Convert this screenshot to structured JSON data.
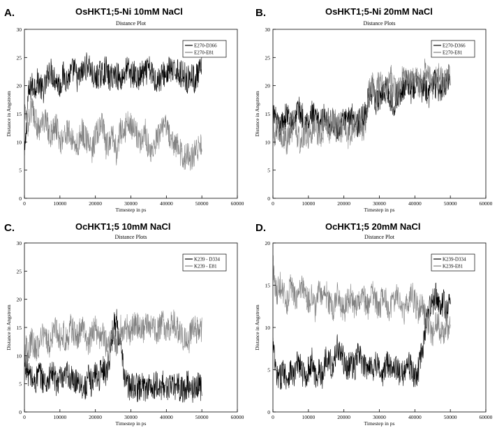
{
  "figure": {
    "panel_letters": [
      "A.",
      "B.",
      "C.",
      "D."
    ]
  },
  "chart_data": [
    {
      "type": "line",
      "panel_letter": "A.",
      "heading": "OsHKT1;5-Ni 10mM NaCl",
      "title": "Distance Plot",
      "xlabel": "Timestep in ps",
      "ylabel": "Distance in Angstrom",
      "xlim": [
        0,
        60000
      ],
      "ylim": [
        0,
        30
      ],
      "xticks": [
        0,
        10000,
        20000,
        30000,
        40000,
        50000,
        60000
      ],
      "yticks": [
        0,
        5,
        10,
        15,
        20,
        25,
        30
      ],
      "legend_position": "top-right",
      "grid": false,
      "series": [
        {
          "name": "E270-D366",
          "color": "#000000",
          "x": [
            0,
            500,
            1000,
            2000,
            3000,
            4000,
            5000,
            6000,
            7000,
            8000,
            9000,
            10000,
            11000,
            12000,
            13000,
            14000,
            15000,
            16000,
            17000,
            18000,
            19000,
            20000,
            21000,
            22000,
            23000,
            24000,
            25000,
            26000,
            27000,
            28000,
            29000,
            30000,
            31000,
            32000,
            33000,
            34000,
            35000,
            36000,
            37000,
            38000,
            39000,
            40000,
            41000,
            42000,
            43000,
            44000,
            45000,
            46000,
            47000,
            48000,
            49000,
            50000
          ],
          "y": [
            7,
            12,
            18,
            20,
            20,
            21,
            19,
            20,
            23,
            22,
            21,
            20,
            22,
            21,
            22,
            23,
            21,
            22,
            23,
            24,
            22,
            21,
            22,
            22,
            23,
            21,
            22,
            22,
            21,
            22,
            23,
            22,
            22,
            21,
            22,
            22,
            23,
            22,
            21,
            21,
            22,
            22,
            23,
            22,
            23,
            22,
            22,
            21,
            22,
            21,
            22,
            23
          ]
        },
        {
          "name": "E270-E81",
          "color": "#808080",
          "x": [
            0,
            500,
            1000,
            2000,
            3000,
            4000,
            5000,
            6000,
            7000,
            8000,
            9000,
            10000,
            11000,
            12000,
            13000,
            14000,
            15000,
            16000,
            17000,
            18000,
            19000,
            20000,
            21000,
            22000,
            23000,
            24000,
            25000,
            26000,
            27000,
            28000,
            29000,
            30000,
            31000,
            32000,
            33000,
            34000,
            35000,
            36000,
            37000,
            38000,
            39000,
            40000,
            41000,
            42000,
            43000,
            44000,
            45000,
            46000,
            47000,
            48000,
            49000,
            50000
          ],
          "y": [
            14,
            15,
            13,
            16,
            14,
            12,
            13,
            15,
            11,
            12,
            13,
            10,
            11,
            12,
            11,
            10,
            9,
            12,
            11,
            10,
            8,
            11,
            12,
            13,
            9,
            10,
            11,
            8,
            12,
            11,
            14,
            13,
            12,
            11,
            10,
            12,
            9,
            8,
            10,
            11,
            12,
            13,
            11,
            9,
            10,
            8,
            7,
            8,
            7,
            8,
            9,
            9
          ]
        }
      ]
    },
    {
      "type": "line",
      "panel_letter": "B.",
      "heading": "OsHKT1;5-Ni 20mM NaCl",
      "title": "Distance Plots",
      "xlabel": "Timestep in ps",
      "ylabel": "Distance in Angstrom",
      "xlim": [
        0,
        60000
      ],
      "ylim": [
        0,
        30
      ],
      "xticks": [
        0,
        10000,
        20000,
        30000,
        40000,
        50000,
        60000
      ],
      "yticks": [
        0,
        5,
        10,
        15,
        20,
        25,
        30
      ],
      "legend_position": "top-right",
      "grid": false,
      "series": [
        {
          "name": "E270-D366",
          "color": "#000000",
          "x": [
            0,
            500,
            1000,
            2000,
            3000,
            4000,
            5000,
            6000,
            7000,
            8000,
            9000,
            10000,
            11000,
            12000,
            13000,
            14000,
            15000,
            16000,
            17000,
            18000,
            19000,
            20000,
            21000,
            22000,
            23000,
            24000,
            25000,
            26000,
            27000,
            28000,
            29000,
            30000,
            31000,
            32000,
            33000,
            34000,
            35000,
            36000,
            37000,
            38000,
            39000,
            40000,
            41000,
            42000,
            43000,
            44000,
            45000,
            46000,
            47000,
            48000,
            49000,
            50000
          ],
          "y": [
            14,
            15,
            13,
            12,
            14,
            15,
            13,
            14,
            16,
            15,
            14,
            13,
            15,
            14,
            13,
            14,
            15,
            13,
            14,
            12,
            13,
            14,
            13,
            15,
            14,
            13,
            14,
            15,
            18,
            19,
            17,
            18,
            19,
            20,
            18,
            17,
            18,
            19,
            20,
            21,
            19,
            20,
            21,
            19,
            20,
            18,
            21,
            20,
            19,
            20,
            21,
            22
          ]
        },
        {
          "name": "E270-E81",
          "color": "#808080",
          "x": [
            0,
            500,
            1000,
            2000,
            3000,
            4000,
            5000,
            6000,
            7000,
            8000,
            9000,
            10000,
            11000,
            12000,
            13000,
            14000,
            15000,
            16000,
            17000,
            18000,
            19000,
            20000,
            21000,
            22000,
            23000,
            24000,
            25000,
            26000,
            27000,
            28000,
            29000,
            30000,
            31000,
            32000,
            33000,
            34000,
            35000,
            36000,
            37000,
            38000,
            39000,
            40000,
            41000,
            42000,
            43000,
            44000,
            45000,
            46000,
            47000,
            48000,
            49000,
            50000
          ],
          "y": [
            12,
            11,
            13,
            12,
            11,
            10,
            12,
            13,
            11,
            10,
            12,
            11,
            12,
            13,
            11,
            12,
            13,
            12,
            14,
            13,
            12,
            13,
            11,
            12,
            13,
            14,
            12,
            13,
            19,
            20,
            18,
            21,
            20,
            19,
            22,
            20,
            18,
            21,
            22,
            20,
            21,
            22,
            20,
            21,
            23,
            22,
            20,
            21,
            22,
            20,
            21,
            22
          ]
        }
      ]
    },
    {
      "type": "line",
      "panel_letter": "C.",
      "heading": "OcHKT1;5 10mM NaCl",
      "title": "Distance Plots",
      "xlabel": "Timestep in ps",
      "ylabel": "Distance in Angstrom",
      "xlim": [
        0,
        60000
      ],
      "ylim": [
        0,
        30
      ],
      "xticks": [
        0,
        10000,
        20000,
        30000,
        40000,
        50000,
        60000
      ],
      "yticks": [
        0,
        5,
        10,
        15,
        20,
        25,
        30
      ],
      "legend_position": "top-right",
      "grid": false,
      "series": [
        {
          "name": "K239 - D334",
          "color": "#000000",
          "x": [
            0,
            500,
            1000,
            2000,
            3000,
            4000,
            5000,
            6000,
            7000,
            8000,
            9000,
            10000,
            11000,
            12000,
            13000,
            14000,
            15000,
            16000,
            17000,
            18000,
            19000,
            20000,
            21000,
            22000,
            23000,
            24000,
            25000,
            26000,
            27000,
            28000,
            29000,
            30000,
            31000,
            32000,
            33000,
            34000,
            35000,
            36000,
            37000,
            38000,
            39000,
            40000,
            41000,
            42000,
            43000,
            44000,
            45000,
            46000,
            47000,
            48000,
            49000,
            50000
          ],
          "y": [
            9,
            8,
            7,
            6,
            5,
            7,
            6,
            5,
            6,
            7,
            5,
            6,
            5,
            7,
            6,
            5,
            6,
            5,
            4,
            6,
            5,
            7,
            6,
            8,
            7,
            10,
            15,
            16,
            12,
            7,
            5,
            4,
            5,
            4,
            5,
            4,
            5,
            4,
            5,
            4,
            5,
            4,
            5,
            4,
            5,
            4,
            4,
            5,
            4,
            4,
            5,
            4
          ]
        },
        {
          "name": "K239 - E81",
          "color": "#808080",
          "x": [
            0,
            500,
            1000,
            2000,
            3000,
            4000,
            5000,
            6000,
            7000,
            8000,
            9000,
            10000,
            11000,
            12000,
            13000,
            14000,
            15000,
            16000,
            17000,
            18000,
            19000,
            20000,
            21000,
            22000,
            23000,
            24000,
            25000,
            26000,
            27000,
            28000,
            29000,
            30000,
            31000,
            32000,
            33000,
            34000,
            35000,
            36000,
            37000,
            38000,
            39000,
            40000,
            41000,
            42000,
            43000,
            44000,
            45000,
            46000,
            47000,
            48000,
            49000,
            50000
          ],
          "y": [
            11,
            12,
            10,
            13,
            11,
            12,
            14,
            13,
            12,
            14,
            15,
            13,
            14,
            12,
            15,
            14,
            13,
            15,
            14,
            12,
            14,
            15,
            13,
            14,
            12,
            13,
            14,
            12,
            15,
            14,
            15,
            14,
            16,
            15,
            14,
            15,
            16,
            15,
            14,
            15,
            16,
            14,
            15,
            16,
            15,
            14,
            13,
            12,
            14,
            15,
            14,
            15
          ]
        }
      ]
    },
    {
      "type": "line",
      "panel_letter": "D.",
      "heading": "OcHKT1;5 20mM NaCl",
      "title": "Distance Plot",
      "xlabel": "Timestep in ps",
      "ylabel": "Distance in Angstrom",
      "xlim": [
        0,
        60000
      ],
      "ylim": [
        0,
        20
      ],
      "xticks": [
        0,
        10000,
        20000,
        30000,
        40000,
        50000,
        60000
      ],
      "yticks": [
        0,
        5,
        10,
        15,
        20
      ],
      "legend_position": "top-right",
      "grid": false,
      "series": [
        {
          "name": "K239-D334",
          "color": "#000000",
          "x": [
            0,
            500,
            1000,
            2000,
            3000,
            4000,
            5000,
            6000,
            7000,
            8000,
            9000,
            10000,
            11000,
            12000,
            13000,
            14000,
            15000,
            16000,
            17000,
            18000,
            19000,
            20000,
            21000,
            22000,
            23000,
            24000,
            25000,
            26000,
            27000,
            28000,
            29000,
            30000,
            31000,
            32000,
            33000,
            34000,
            35000,
            36000,
            37000,
            38000,
            39000,
            40000,
            41000,
            42000,
            43000,
            44000,
            45000,
            46000,
            47000,
            48000,
            49000,
            50000
          ],
          "y": [
            8,
            6,
            4,
            4,
            5,
            4,
            5,
            4,
            6,
            5,
            4,
            5,
            6,
            4,
            5,
            4,
            7,
            6,
            5,
            8,
            7,
            6,
            5,
            6,
            5,
            7,
            6,
            5,
            6,
            5,
            6,
            5,
            4,
            6,
            5,
            6,
            5,
            4,
            5,
            6,
            5,
            4,
            5,
            7,
            10,
            12,
            13,
            14,
            12,
            13,
            12,
            13
          ]
        },
        {
          "name": "K239-E81",
          "color": "#808080",
          "x": [
            0,
            500,
            1000,
            2000,
            3000,
            4000,
            5000,
            6000,
            7000,
            8000,
            9000,
            10000,
            11000,
            12000,
            13000,
            14000,
            15000,
            16000,
            17000,
            18000,
            19000,
            20000,
            21000,
            22000,
            23000,
            24000,
            25000,
            26000,
            27000,
            28000,
            29000,
            30000,
            31000,
            32000,
            33000,
            34000,
            35000,
            36000,
            37000,
            38000,
            39000,
            40000,
            41000,
            42000,
            43000,
            44000,
            45000,
            46000,
            47000,
            48000,
            49000,
            50000
          ],
          "y": [
            18,
            15,
            14,
            15,
            14,
            13,
            15,
            14,
            13,
            15,
            14,
            13,
            14,
            12,
            15,
            13,
            14,
            13,
            12,
            14,
            13,
            12,
            13,
            14,
            12,
            13,
            14,
            13,
            12,
            14,
            13,
            12,
            14,
            13,
            12,
            13,
            14,
            13,
            12,
            13,
            14,
            13,
            12,
            13,
            11,
            10,
            9,
            11,
            10,
            9,
            10,
            10
          ]
        }
      ]
    }
  ]
}
